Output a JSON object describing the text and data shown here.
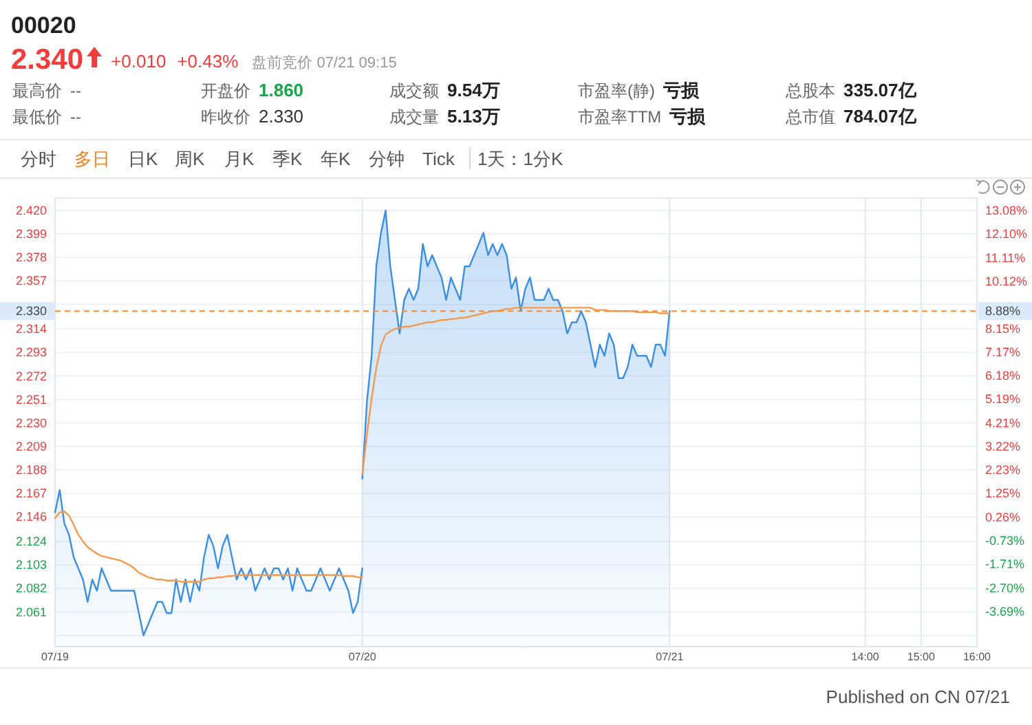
{
  "chart_data": [
    {
      "type": "other",
      "title": "00020",
      "annotations": [
        "2.340",
        "+0.010",
        "+0.43%",
        "盘前竞价 07/21 09:15",
        "最高价",
        "--",
        "开盘价",
        "1.860",
        "成交额",
        "9.54万",
        "市盈率(静)",
        "亏损",
        "总股本",
        "335.07亿",
        "最低价",
        "--",
        "昨收价",
        "2.330",
        "成交量",
        "5.13万",
        "市盈率TTM",
        "亏损",
        "总市值",
        "784.07亿",
        "分时",
        "多日",
        "日K",
        "周K",
        "月K",
        "季K",
        "年K",
        "分钟",
        "Tick",
        "1天：1分K"
      ]
    },
    {
      "type": "line",
      "categories": [
        "07/19",
        null,
        null,
        null,
        null,
        null,
        null,
        null,
        null,
        null,
        null,
        null,
        null,
        null,
        null,
        null,
        null,
        null,
        null,
        null,
        null,
        null,
        null,
        null,
        null,
        null,
        null,
        null,
        null,
        null,
        null,
        null,
        null,
        null,
        null,
        null,
        null,
        null,
        null,
        null,
        null,
        null,
        null,
        null,
        null,
        null,
        null,
        null,
        null,
        null,
        null,
        null,
        null,
        null,
        null,
        null,
        null,
        null,
        null,
        null,
        null,
        null,
        null,
        null,
        null,
        null,
        "07/20",
        null,
        null,
        null,
        null,
        null,
        null,
        null,
        null,
        null,
        null,
        null,
        null,
        null,
        null,
        null,
        null,
        null,
        null,
        null,
        null,
        null,
        null,
        null,
        null,
        null,
        null,
        null,
        null,
        null,
        null,
        null,
        null,
        null,
        null,
        null,
        null,
        null,
        null,
        null,
        null,
        null,
        null,
        null,
        null,
        null,
        null,
        null,
        null,
        null,
        null,
        null,
        null,
        null,
        null,
        null,
        null,
        null,
        null,
        null,
        null,
        null,
        null,
        null,
        null,
        null,
        "07/21",
        null,
        null,
        null,
        null,
        null,
        null,
        null,
        null,
        null,
        null,
        null,
        null,
        null,
        null,
        null,
        null,
        null,
        null,
        null,
        null,
        null,
        null,
        null,
        null,
        null,
        null,
        null,
        null,
        null,
        null,
        null,
        null,
        null,
        null,
        null,
        null,
        null,
        null,
        null,
        null,
        null,
        "14:00",
        null,
        null,
        null,
        null,
        null,
        null,
        null,
        null,
        null,
        null,
        null,
        "15:00",
        null,
        null,
        null,
        null,
        null,
        null,
        null,
        null,
        null,
        null,
        null,
        "16:00"
      ],
      "series": [
        {
          "type": "area",
          "color": "#3a8ee6",
          "values": [
            2.15,
            2.17,
            2.14,
            2.13,
            2.11,
            2.1,
            2.09,
            2.07,
            2.09,
            2.08,
            2.1,
            2.09,
            2.08,
            2.08,
            2.08,
            2.08,
            2.08,
            2.08,
            2.06,
            2.04,
            2.05,
            2.06,
            2.07,
            2.07,
            2.06,
            2.06,
            2.09,
            2.07,
            2.09,
            2.07,
            2.09,
            2.08,
            2.11,
            2.13,
            2.12,
            2.1,
            2.12,
            2.13,
            2.11,
            2.09,
            2.1,
            2.09,
            2.1,
            2.08,
            2.09,
            2.1,
            2.09,
            2.1,
            2.1,
            2.09,
            2.1,
            2.08,
            2.1,
            2.09,
            2.08,
            2.08,
            2.09,
            2.1,
            2.09,
            2.08,
            2.09,
            2.1,
            2.09,
            2.08,
            2.06,
            2.07,
            2.1,
            null,
            null,
            null,
            null,
            null,
            null,
            null,
            null,
            null,
            null,
            null,
            null,
            null,
            null,
            null,
            null,
            null,
            null,
            null,
            null,
            null,
            null,
            null,
            null,
            null,
            null,
            null,
            null,
            null,
            null,
            null,
            null,
            null,
            null,
            null,
            null,
            null,
            null,
            null,
            null,
            null,
            null,
            null,
            null,
            null,
            null,
            null,
            null,
            null,
            null,
            null,
            null,
            null,
            null,
            null,
            null,
            null,
            null,
            null,
            null,
            null,
            null,
            null,
            null,
            null,
            null,
            null,
            null,
            null,
            null,
            null,
            null,
            null,
            null,
            null,
            null,
            null,
            null,
            null,
            null,
            null,
            null,
            null,
            null,
            null,
            null,
            null,
            null,
            null,
            null,
            null,
            null,
            null,
            null,
            null,
            null,
            null,
            null,
            null,
            null,
            null,
            null,
            null,
            null,
            null,
            null,
            null,
            null,
            null,
            null,
            null,
            null,
            null,
            null,
            null,
            null,
            null,
            null,
            null,
            null,
            null,
            null,
            null,
            null,
            null,
            null,
            null,
            null,
            null,
            null,
            null,
            null
          ]
        },
        {
          "type": "area",
          "color": "#3a8ee6",
          "values": [
            null,
            null,
            null,
            null,
            null,
            null,
            null,
            null,
            null,
            null,
            null,
            null,
            null,
            null,
            null,
            null,
            null,
            null,
            null,
            null,
            null,
            null,
            null,
            null,
            null,
            null,
            null,
            null,
            null,
            null,
            null,
            null,
            null,
            null,
            null,
            null,
            null,
            null,
            null,
            null,
            null,
            null,
            null,
            null,
            null,
            null,
            null,
            null,
            null,
            null,
            null,
            null,
            null,
            null,
            null,
            null,
            null,
            null,
            null,
            null,
            null,
            null,
            null,
            null,
            null,
            null,
            2.18,
            2.25,
            2.29,
            2.37,
            2.4,
            2.42,
            2.37,
            2.34,
            2.31,
            2.34,
            2.35,
            2.34,
            2.35,
            2.39,
            2.37,
            2.38,
            2.37,
            2.36,
            2.34,
            2.36,
            2.35,
            2.34,
            2.37,
            2.37,
            2.38,
            2.39,
            2.4,
            2.38,
            2.39,
            2.38,
            2.39,
            2.38,
            2.35,
            2.36,
            2.33,
            2.35,
            2.36,
            2.34,
            2.34,
            2.34,
            2.35,
            2.34,
            2.34,
            2.33,
            2.31,
            2.32,
            2.32,
            2.33,
            2.32,
            2.3,
            2.28,
            2.3,
            2.29,
            2.31,
            2.3,
            2.27,
            2.27,
            2.28,
            2.3,
            2.29,
            2.29,
            2.29,
            2.28,
            2.3,
            2.3,
            2.29,
            2.33,
            null,
            null,
            null,
            null,
            null,
            null,
            null,
            null,
            null,
            null,
            null,
            null,
            null,
            null,
            null,
            null,
            null,
            null,
            null,
            null,
            null,
            null,
            null,
            null,
            null,
            null,
            null,
            null,
            null,
            null,
            null,
            null,
            null,
            null,
            null,
            null,
            null,
            null,
            null,
            null,
            null,
            null,
            null,
            null,
            null,
            null,
            null,
            null,
            null,
            null,
            null,
            null,
            null,
            null,
            null,
            null,
            null,
            null,
            null,
            null,
            null,
            null,
            null,
            null,
            null,
            null
          ]
        },
        {
          "type": "line",
          "color": "#f39a4c",
          "values": [
            2.145,
            2.15,
            2.151,
            2.147,
            2.139,
            2.13,
            2.124,
            2.119,
            2.116,
            2.113,
            2.111,
            2.11,
            2.109,
            2.108,
            2.107,
            2.105,
            2.103,
            2.1,
            2.096,
            2.094,
            2.092,
            2.091,
            2.09,
            2.09,
            2.089,
            2.089,
            2.089,
            2.088,
            2.088,
            2.088,
            2.088,
            2.088,
            2.09,
            2.091,
            2.091,
            2.092,
            2.092,
            2.093,
            2.093,
            2.094,
            2.094,
            2.094,
            2.094,
            2.094,
            2.094,
            2.094,
            2.094,
            2.094,
            2.094,
            2.094,
            2.094,
            2.094,
            2.094,
            2.094,
            2.094,
            2.094,
            2.094,
            2.094,
            2.094,
            2.094,
            2.094,
            2.094,
            2.093,
            2.093,
            2.093,
            2.092,
            2.092,
            null,
            null,
            null,
            null,
            null,
            null,
            null,
            null,
            null,
            null,
            null,
            null,
            null,
            null,
            null,
            null,
            null,
            null,
            null,
            null,
            null,
            null,
            null,
            null,
            null,
            null,
            null,
            null,
            null,
            null,
            null,
            null,
            null,
            null,
            null,
            null,
            null,
            null,
            null,
            null,
            null,
            null,
            null,
            null,
            null,
            null,
            null,
            null,
            null,
            null,
            null,
            null,
            null,
            null,
            null,
            null,
            null,
            null,
            null,
            null,
            null,
            null,
            null,
            null,
            null,
            null,
            null,
            null,
            null,
            null,
            null,
            null,
            null,
            null,
            null,
            null,
            null,
            null,
            null,
            null,
            null,
            null,
            null,
            null,
            null,
            null,
            null,
            null,
            null,
            null,
            null,
            null,
            null,
            null,
            null,
            null,
            null,
            null,
            null,
            null,
            null,
            null,
            null,
            null,
            null,
            null,
            null,
            null,
            null,
            null,
            null,
            null,
            null,
            null,
            null,
            null,
            null,
            null,
            null,
            null,
            null,
            null,
            null,
            null,
            null,
            null,
            null,
            null,
            null,
            null,
            null,
            null
          ]
        },
        {
          "type": "line",
          "color": "#f39a4c",
          "values": [
            null,
            null,
            null,
            null,
            null,
            null,
            null,
            null,
            null,
            null,
            null,
            null,
            null,
            null,
            null,
            null,
            null,
            null,
            null,
            null,
            null,
            null,
            null,
            null,
            null,
            null,
            null,
            null,
            null,
            null,
            null,
            null,
            null,
            null,
            null,
            null,
            null,
            null,
            null,
            null,
            null,
            null,
            null,
            null,
            null,
            null,
            null,
            null,
            null,
            null,
            null,
            null,
            null,
            null,
            null,
            null,
            null,
            null,
            null,
            null,
            null,
            null,
            null,
            null,
            null,
            null,
            2.184,
            2.22,
            2.252,
            2.279,
            2.299,
            2.309,
            2.312,
            2.314,
            2.315,
            2.316,
            2.316,
            2.317,
            2.318,
            2.319,
            2.32,
            2.32,
            2.321,
            2.322,
            2.322,
            2.323,
            2.323,
            2.324,
            2.324,
            2.325,
            2.326,
            2.327,
            2.328,
            2.329,
            2.33,
            2.33,
            2.331,
            2.332,
            2.332,
            2.333,
            2.333,
            2.333,
            2.333,
            2.333,
            2.333,
            2.333,
            2.333,
            2.333,
            2.333,
            2.333,
            2.333,
            2.333,
            2.333,
            2.333,
            2.333,
            2.333,
            2.331,
            2.331,
            2.331,
            2.33,
            2.33,
            2.33,
            2.33,
            2.33,
            2.33,
            2.329,
            2.329,
            2.329,
            2.329,
            2.329,
            2.328,
            2.328,
            2.328,
            null,
            null,
            null,
            null,
            null,
            null,
            null,
            null,
            null,
            null,
            null,
            null,
            null,
            null,
            null,
            null,
            null,
            null,
            null,
            null,
            null,
            null,
            null,
            null,
            null,
            null,
            null,
            null,
            null,
            null,
            null,
            null,
            null,
            null,
            null,
            null,
            null,
            null,
            null,
            null,
            null,
            null,
            null,
            null,
            null,
            null,
            null,
            null,
            null,
            null,
            null,
            null,
            null,
            null,
            null,
            null,
            null,
            null,
            null,
            null,
            null,
            null,
            null,
            null,
            null,
            null
          ]
        }
      ],
      "ylim": [
        2.03,
        2.431
      ],
      "yticks": [
        {
          "value": 2.42,
          "label": "2.420"
        },
        {
          "value": 2.399,
          "label": "2.399"
        },
        {
          "value": 2.378,
          "label": "2.378"
        },
        {
          "value": 2.357,
          "label": "2.357"
        },
        {
          "value": 2.336,
          "label": null
        },
        {
          "value": 2.314,
          "label": "2.314"
        },
        {
          "value": 2.293,
          "label": "2.293"
        },
        {
          "value": 2.272,
          "label": "2.272"
        },
        {
          "value": 2.251,
          "label": "2.251"
        },
        {
          "value": 2.23,
          "label": "2.230"
        },
        {
          "value": 2.209,
          "label": "2.209"
        },
        {
          "value": 2.188,
          "label": "2.188"
        },
        {
          "value": 2.167,
          "label": "2.167"
        },
        {
          "value": 2.146,
          "label": "2.146"
        },
        {
          "value": 2.124,
          "label": "2.124"
        },
        {
          "value": 2.103,
          "label": "2.103"
        },
        {
          "value": 2.082,
          "label": "2.082"
        },
        {
          "value": 2.061,
          "label": "2.061"
        },
        {
          "value": 2.04,
          "label": null
        }
      ],
      "y2lim": [
        -5.15,
        13.6
      ],
      "y2ticks": [
        {
          "value": 13.08,
          "label": "13.08%"
        },
        {
          "value": 12.1,
          "label": "12.10%"
        },
        {
          "value": 11.11,
          "label": "11.11%"
        },
        {
          "value": 10.12,
          "label": "10.12%"
        },
        {
          "value": 9.13,
          "label": null
        },
        {
          "value": 8.15,
          "label": "8.15%"
        },
        {
          "value": 7.17,
          "label": "7.17%"
        },
        {
          "value": 6.18,
          "label": "6.18%"
        },
        {
          "value": 5.19,
          "label": "5.19%"
        },
        {
          "value": 4.21,
          "label": "4.21%"
        },
        {
          "value": 3.22,
          "label": "3.22%"
        },
        {
          "value": 2.23,
          "label": "2.23%"
        },
        {
          "value": 1.25,
          "label": "1.25%"
        },
        {
          "value": 0.26,
          "label": "0.26%"
        },
        {
          "value": -0.73,
          "label": "-0.73%"
        },
        {
          "value": -1.71,
          "label": "-1.71%"
        },
        {
          "value": -2.7,
          "label": "-2.70%"
        },
        {
          "value": -3.69,
          "label": "-3.69%"
        }
      ],
      "ref_lines": [
        {
          "axis": "y",
          "value": 2.33,
          "label": "2.330",
          "color": "#ff8c32",
          "line_style": "dashed"
        }
      ],
      "grid": true,
      "annotations": [
        "Published on CN 07/21",
        {
          "text": "8.88%",
          "y": 2.33
        }
      ]
    }
  ]
}
